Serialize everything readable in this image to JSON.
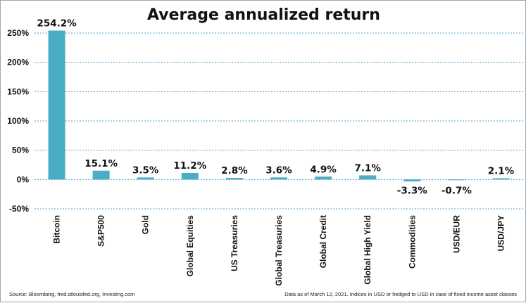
{
  "chart_data": {
    "type": "bar",
    "title": "Average annualized return",
    "categories": [
      "Bitcoin",
      "S&P500",
      "Gold",
      "Global Equities",
      "US Treasuries",
      "Global Treasuries",
      "Global Credit",
      "Global High Yield",
      "Commodities",
      "USD/EUR",
      "USD/JPY"
    ],
    "values": [
      254.2,
      15.1,
      3.5,
      11.2,
      2.8,
      3.6,
      4.9,
      7.1,
      -3.3,
      -0.7,
      2.1
    ],
    "data_labels": [
      "254.2%",
      "15.1%",
      "3.5%",
      "11.2%",
      "2.8%",
      "3.6%",
      "4.9%",
      "7.1%",
      "-3.3%",
      "-0.7%",
      "2.1%"
    ],
    "yticks": [
      -50,
      0,
      50,
      100,
      150,
      200,
      250
    ],
    "ytick_labels": [
      "-50%",
      "0%",
      "50%",
      "100%",
      "150%",
      "200%",
      "250%"
    ],
    "ylim": [
      -50,
      250
    ],
    "grid": true,
    "bar_color": "#4bacc6",
    "grid_color": "#4f9fd6",
    "xlabel": "",
    "ylabel": ""
  },
  "footnotes": {
    "source": "Source: Bloomberg, fred.stlouisfed.org, Investing.com",
    "note": "Data as of March 12, 2021. Indices in USD or hedged to USD in case of fixed income asset classes"
  }
}
